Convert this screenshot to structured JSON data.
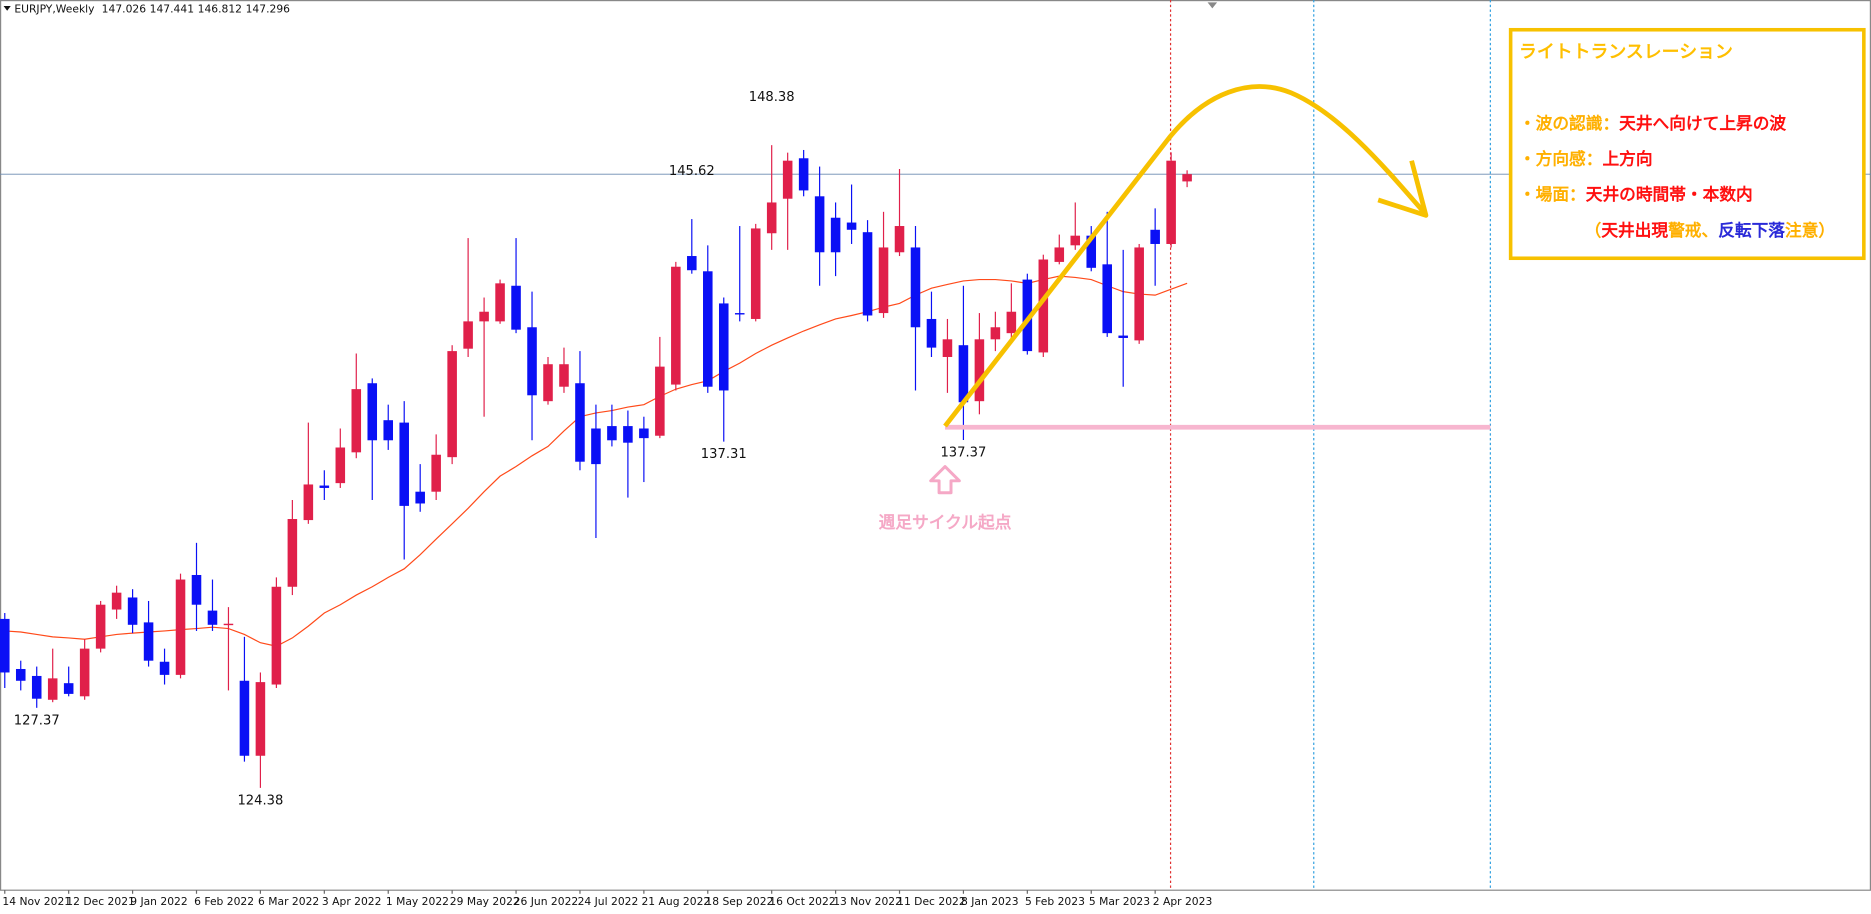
{
  "chart_data": {
    "type": "candlestick",
    "symbol": "EURJPY,Weekly",
    "categories": [
      "14 Nov 2021",
      null,
      null,
      null,
      "12 Dec 2021",
      null,
      null,
      null,
      "9 Jan 2022",
      null,
      null,
      null,
      "6 Feb 2022",
      null,
      null,
      null,
      "6 Mar 2022",
      null,
      null,
      null,
      "3 Apr 2022",
      null,
      null,
      null,
      "1 May 2022",
      null,
      null,
      null,
      "29 May 2022",
      null,
      null,
      null,
      "26 Jun 2022",
      null,
      null,
      null,
      "24 Jul 2022",
      null,
      null,
      null,
      "21 Aug 2022",
      null,
      null,
      null,
      "18 Sep 2022",
      null,
      null,
      null,
      "16 Oct 2022",
      null,
      null,
      null,
      "13 Nov 2022",
      null,
      null,
      null,
      "11 Dec 2022",
      null,
      null,
      null,
      "8 Jan 2023",
      null,
      null,
      null,
      "5 Feb 2023",
      null,
      null,
      null,
      "5 Mar 2023",
      null,
      null,
      null,
      "2 Apr 2023",
      null,
      null
    ],
    "open": [
      130.69,
      128.82,
      128.56,
      127.67,
      128.29,
      127.8,
      129.58,
      131.04,
      131.49,
      130.56,
      129.09,
      128.6,
      132.33,
      131.0,
      130.47,
      128.38,
      125.58,
      128.24,
      131.89,
      134.38,
      135.67,
      135.76,
      136.91,
      139.49,
      138.11,
      138.02,
      135.44,
      135.44,
      136.73,
      140.78,
      141.8,
      141.8,
      143.13,
      141.58,
      138.82,
      139.36,
      139.49,
      137.8,
      137.89,
      137.89,
      137.8,
      137.53,
      139.44,
      144.24,
      143.67,
      142.47,
      142.11,
      141.89,
      145.09,
      146.38,
      147.89,
      146.47,
      145.67,
      145.49,
      145.13,
      142.11,
      144.38,
      144.56,
      141.89,
      140.47,
      140.91,
      138.82,
      141.13,
      141.36,
      143.36,
      140.64,
      144.02,
      144.64,
      145.0,
      143.93,
      141.27,
      141.09,
      145.22,
      144.69,
      147.026
    ],
    "high": [
      130.91,
      129.13,
      128.91,
      129.58,
      128.91,
      129.93,
      131.36,
      131.93,
      131.8,
      131.36,
      129.58,
      132.38,
      133.53,
      132.16,
      131.13,
      130.02,
      128.69,
      132.24,
      135.13,
      138.02,
      136.24,
      137.8,
      140.6,
      139.67,
      138.69,
      138.82,
      136.47,
      137.58,
      140.91,
      144.91,
      142.69,
      143.36,
      144.91,
      142.91,
      140.47,
      140.82,
      140.69,
      138.69,
      138.69,
      138.47,
      138.24,
      141.22,
      144.02,
      145.62,
      144.64,
      142.69,
      145.36,
      145.44,
      148.38,
      148.1,
      148.2,
      147.58,
      146.24,
      146.91,
      145.58,
      145.89,
      147.49,
      145.36,
      142.91,
      141.89,
      143.13,
      142.11,
      142.16,
      143.22,
      143.58,
      144.29,
      145.04,
      146.24,
      145.36,
      145.89,
      144.47,
      144.69,
      146.02,
      148.11,
      147.441
    ],
    "low": [
      128.11,
      128.02,
      127.37,
      127.58,
      127.8,
      127.67,
      129.44,
      130.69,
      130.16,
      128.91,
      128.24,
      128.47,
      130.24,
      130.24,
      128.02,
      125.36,
      124.38,
      128.11,
      131.58,
      134.24,
      135.13,
      135.58,
      136.69,
      135.13,
      137.0,
      132.91,
      134.69,
      135.13,
      136.47,
      140.47,
      138.24,
      141.71,
      141.36,
      137.36,
      138.69,
      139.13,
      136.24,
      133.71,
      137.13,
      135.22,
      135.8,
      137.44,
      139.22,
      143.58,
      139.13,
      137.31,
      141.8,
      141.8,
      144.47,
      144.47,
      146.47,
      143.13,
      143.49,
      144.69,
      141.8,
      141.93,
      144.24,
      139.22,
      140.47,
      139.13,
      137.37,
      138.33,
      140.69,
      141.13,
      140.56,
      140.47,
      143.93,
      144.47,
      143.67,
      141.22,
      139.36,
      140.96,
      143.13,
      144.56,
      146.812
    ],
    "close": [
      128.69,
      128.38,
      127.71,
      128.47,
      127.89,
      129.58,
      131.22,
      131.67,
      130.47,
      129.13,
      128.6,
      132.16,
      131.22,
      130.47,
      130.51,
      125.58,
      128.33,
      131.89,
      134.42,
      135.71,
      135.58,
      137.09,
      139.27,
      137.36,
      137.36,
      134.91,
      135.0,
      136.82,
      140.69,
      141.8,
      142.16,
      143.22,
      141.49,
      139.04,
      140.2,
      140.2,
      136.56,
      136.47,
      137.36,
      137.27,
      137.44,
      140.11,
      143.84,
      143.71,
      139.36,
      139.22,
      142.07,
      145.27,
      146.24,
      147.8,
      146.69,
      144.38,
      144.38,
      145.22,
      142.02,
      144.56,
      145.36,
      141.58,
      140.82,
      141.13,
      138.78,
      141.13,
      141.58,
      142.16,
      140.69,
      144.11,
      144.56,
      145.0,
      143.8,
      141.36,
      141.18,
      144.56,
      144.69,
      147.8,
      147.296
    ],
    "up_color": "#e0204a",
    "down_color": "#0a10f5",
    "ma": {
      "color": "#ff4a1a",
      "values": [
        130.24,
        130.2,
        130.11,
        130.02,
        129.98,
        129.93,
        130.02,
        130.11,
        130.16,
        130.2,
        130.24,
        130.29,
        130.33,
        130.38,
        130.33,
        130.11,
        129.8,
        129.67,
        129.98,
        130.42,
        130.91,
        131.22,
        131.58,
        131.89,
        132.24,
        132.56,
        133.09,
        133.67,
        134.24,
        134.82,
        135.44,
        136.02,
        136.38,
        136.78,
        137.13,
        137.71,
        138.24,
        138.38,
        138.47,
        138.6,
        138.69,
        139.0,
        139.27,
        139.44,
        139.58,
        139.93,
        140.24,
        140.6,
        140.91,
        141.18,
        141.44,
        141.67,
        141.89,
        142.02,
        142.16,
        142.33,
        142.47,
        142.78,
        143.04,
        143.18,
        143.31,
        143.36,
        143.36,
        143.31,
        143.22,
        143.36,
        143.49,
        143.44,
        143.36,
        143.13,
        142.91,
        142.82,
        142.78,
        143.0,
        143.22
      ]
    },
    "ylim": [
      120.56,
      153.8
    ],
    "annotation": "週足サイクル起点",
    "info_box": {
      "title": "ライトトランスレーション",
      "title_color": "#ffbf00",
      "lines": [
        [
          {
            "text": "・波の認識：",
            "color": "#ffb000"
          },
          {
            "text": "天井へ向けて上昇の波",
            "color": "#ff1010"
          }
        ],
        [
          {
            "text": "・方向感：",
            "color": "#ffb000"
          },
          {
            "text": "上方向",
            "color": "#ff1010"
          }
        ],
        [
          {
            "text": "・場面：",
            "color": "#ffb000"
          },
          {
            "text": "天井の時間帯・本数内",
            "color": "#ff1010"
          }
        ],
        [
          {
            "text": "（",
            "color": "#ffb000"
          },
          {
            "text": "天井出現",
            "color": "#ff1010"
          },
          {
            "text": "警戒",
            "color": "#ffb000"
          },
          {
            "text": "、",
            "color": "#ffb000"
          },
          {
            "text": "反転下落",
            "color": "#2a2ad8"
          },
          {
            "text": "注意",
            "color": "#ffb000"
          },
          {
            "text": "）",
            "color": "#ffb000"
          }
        ]
      ]
    }
  }
}
